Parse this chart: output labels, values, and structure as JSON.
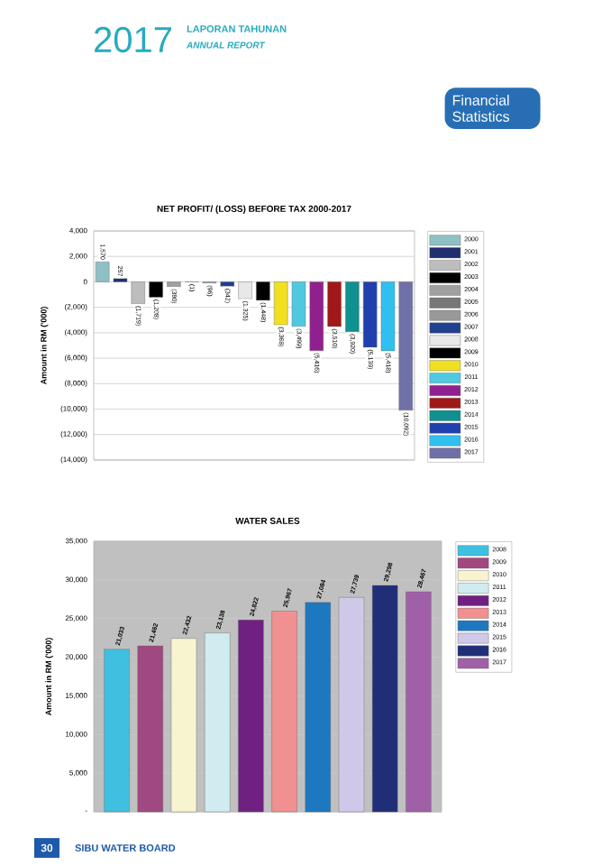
{
  "chart_data": [
    {
      "type": "bar",
      "title": "NET PROFIT/ (LOSS) BEFORE TAX      2000-2017",
      "ylabel": "Amount in RM ('000)",
      "categories": [
        null
      ],
      "series": [
        {
          "name": "2000",
          "color": "#8fc0c4",
          "values": [
            1570
          ],
          "value_labels": [
            "1,570"
          ]
        },
        {
          "name": "2001",
          "color": "#1f2f6f",
          "values": [
            257
          ],
          "value_labels": [
            "257"
          ]
        },
        {
          "name": "2002",
          "color": "#bdbdbd",
          "values": [
            -1719
          ],
          "value_labels": [
            "(1,719)"
          ]
        },
        {
          "name": "2003",
          "color": "#000000",
          "values": [
            -1208
          ],
          "value_labels": [
            "(1,208)"
          ]
        },
        {
          "name": "2004",
          "color": "#a0a0a0",
          "values": [
            -380
          ],
          "value_labels": [
            "(380)"
          ]
        },
        {
          "name": "2005",
          "color": "#777777",
          "values": [
            -1
          ],
          "value_labels": [
            "(1)"
          ]
        },
        {
          "name": "2006",
          "color": "#999999",
          "values": [
            -96
          ],
          "value_labels": [
            "(96)"
          ]
        },
        {
          "name": "2007",
          "color": "#1f3f8f",
          "values": [
            -342
          ],
          "value_labels": [
            "(342)"
          ]
        },
        {
          "name": "2008",
          "color": "#e8e8e8",
          "values": [
            -1325
          ],
          "value_labels": [
            "(1,325)"
          ]
        },
        {
          "name": "2009",
          "color": "#000000",
          "values": [
            -1448
          ],
          "value_labels": [
            "(1,448)"
          ]
        },
        {
          "name": "2010",
          "color": "#f0e020",
          "values": [
            -3368
          ],
          "value_labels": [
            "(3,368)"
          ]
        },
        {
          "name": "2011",
          "color": "#50c8e0",
          "values": [
            -3499
          ],
          "value_labels": [
            "(3,499)"
          ]
        },
        {
          "name": "2012",
          "color": "#902090",
          "values": [
            -5416
          ],
          "value_labels": [
            "(5,416)"
          ]
        },
        {
          "name": "2013",
          "color": "#a01818",
          "values": [
            -3510
          ],
          "value_labels": [
            "(3,510)"
          ]
        },
        {
          "name": "2014",
          "color": "#109090",
          "values": [
            -3920
          ],
          "value_labels": [
            "(3,920)"
          ]
        },
        {
          "name": "2015",
          "color": "#2040b0",
          "values": [
            -5139
          ],
          "value_labels": [
            "(5,139)"
          ]
        },
        {
          "name": "2016",
          "color": "#30c0f0",
          "values": [
            -5418
          ],
          "value_labels": [
            "(5,418)"
          ]
        },
        {
          "name": "2017",
          "color": "#7070a8",
          "values": [
            -10092
          ],
          "value_labels": [
            "(10,092)"
          ]
        }
      ],
      "ylim": [
        -14000,
        4000
      ],
      "yticks": [
        {
          "value": 4000,
          "label": "4,000"
        },
        {
          "value": 2000,
          "label": "2,000"
        },
        0,
        {
          "value": -2000,
          "label": "(2,000)"
        },
        {
          "value": -4000,
          "label": "(4,000)"
        },
        {
          "value": -6000,
          "label": "(6,000)"
        },
        {
          "value": -8000,
          "label": "(8,000)"
        },
        {
          "value": -10000,
          "label": "(10,000)"
        },
        {
          "value": -12000,
          "label": "(12,000)"
        },
        {
          "value": -14000,
          "label": "(14,000)"
        }
      ],
      "grid": "y",
      "legend": "right",
      "annotations": [
        "2017",
        "LAPORAN TAHUNAN",
        "ANNUAL REPORT",
        "Financial Statistics"
      ]
    },
    {
      "type": "bar",
      "title": "WATER SALES",
      "ylabel": "Amount in RM ('000)",
      "categories": [
        null
      ],
      "series": [
        {
          "name": "2008",
          "color": "#40c0e0",
          "values": [
            21033
          ],
          "value_labels": [
            "21,033"
          ]
        },
        {
          "name": "2009",
          "color": "#a04880",
          "values": [
            21462
          ],
          "value_labels": [
            "21,462"
          ]
        },
        {
          "name": "2010",
          "color": "#f8f4d0",
          "values": [
            22432
          ],
          "value_labels": [
            "22,432"
          ]
        },
        {
          "name": "2011",
          "color": "#d0ecf0",
          "values": [
            23138
          ],
          "value_labels": [
            "23,138"
          ]
        },
        {
          "name": "2012",
          "color": "#702080",
          "values": [
            24822
          ],
          "value_labels": [
            "24,822"
          ]
        },
        {
          "name": "2013",
          "color": "#f09090",
          "values": [
            25967
          ],
          "value_labels": [
            "25,967"
          ]
        },
        {
          "name": "2014",
          "color": "#1e78c0",
          "values": [
            27084
          ],
          "value_labels": [
            "27,084"
          ]
        },
        {
          "name": "2015",
          "color": "#d0c8e8",
          "values": [
            27739
          ],
          "value_labels": [
            "27,739"
          ]
        },
        {
          "name": "2016",
          "color": "#202e78",
          "values": [
            29298
          ],
          "value_labels": [
            "29,298"
          ]
        },
        {
          "name": "2017",
          "color": "#a060a8",
          "values": [
            28467
          ],
          "value_labels": [
            "28,467"
          ]
        }
      ],
      "ylim": [
        0,
        35000
      ],
      "yticks": [
        {
          "value": 0,
          "label": "-"
        },
        {
          "value": 5000,
          "label": "5,000"
        },
        {
          "value": 10000,
          "label": "10,000"
        },
        {
          "value": 15000,
          "label": "15,000"
        },
        {
          "value": 20000,
          "label": "20,000"
        },
        {
          "value": 25000,
          "label": "25,000"
        },
        {
          "value": 30000,
          "label": "30,000"
        },
        {
          "value": 35000,
          "label": "35,000"
        }
      ],
      "grid": "y",
      "legend": "right",
      "annotations": [
        "30",
        "SIBU WATER BOARD"
      ]
    }
  ]
}
